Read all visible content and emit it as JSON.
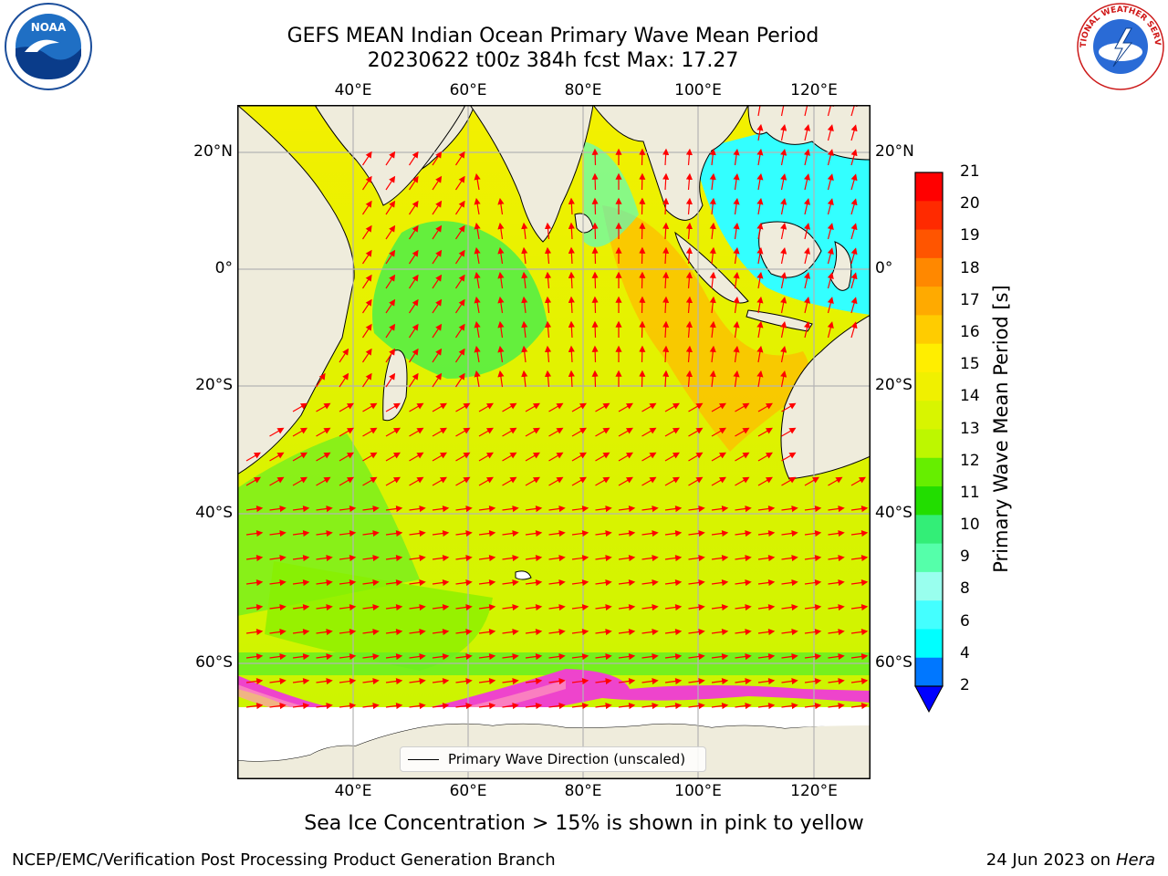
{
  "title": "GEFS MEAN Indian Ocean Primary Wave Mean Period",
  "subtitle_line": "20230622 t00z 384h fcst   Max: 17.27",
  "map": {
    "lon_ticks": [
      "40°E",
      "60°E",
      "80°E",
      "100°E",
      "120°E"
    ],
    "lat_ticks_left": [
      "20°N",
      "0°",
      "20°S",
      "40°S",
      "60°S"
    ],
    "lat_ticks_right": [
      "20°N",
      "0°",
      "20°S",
      "40°S",
      "60°S"
    ],
    "lon_range": [
      20,
      130
    ],
    "lat_range": [
      -73,
      27
    ],
    "grid": true,
    "land_color": "#efecdc",
    "arrow_color": "#ff0000"
  },
  "legend": {
    "label": "Primary Wave Direction (unscaled)"
  },
  "colorbar": {
    "label": "Primary Wave Mean Period [s]",
    "ticks": [
      "21",
      "20",
      "19",
      "18",
      "17",
      "16",
      "15",
      "14",
      "13",
      "12",
      "11",
      "10",
      "9",
      "8",
      "6",
      "4",
      "2"
    ],
    "colors": [
      "#ff0000",
      "#ff2a00",
      "#ff5500",
      "#ff8800",
      "#ffaa00",
      "#ffcc00",
      "#ffee00",
      "#f0f000",
      "#d8f500",
      "#bdf700",
      "#66ee00",
      "#22dd00",
      "#33ee77",
      "#55ffaa",
      "#99ffee",
      "#44ffff",
      "#00ffff",
      "#0077ff"
    ],
    "extend_color": "#0000ff"
  },
  "footer": {
    "sea_ice_note": "Sea Ice Concentration > 15% is shown in pink to yellow",
    "credit": "NCEP/EMC/Verification Post Processing Product Generation Branch",
    "date": "24 Jun 2023 on",
    "machine": "Hera"
  },
  "logos": {
    "noaa_text": "NOAA",
    "nws_text": "NATIONAL WEATHER SERVICE"
  }
}
